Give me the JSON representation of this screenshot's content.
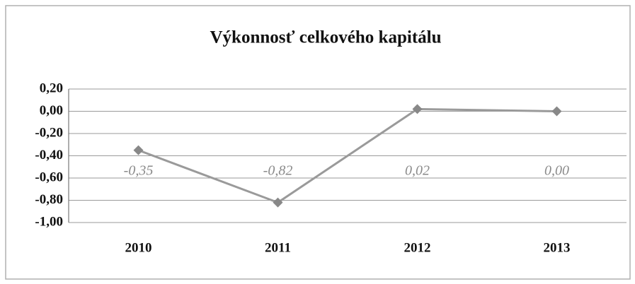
{
  "chart_data": {
    "type": "line",
    "title": "Výkonnosť celkového kapitálu",
    "categories": [
      "2010",
      "2011",
      "2012",
      "2013"
    ],
    "values": [
      -0.35,
      -0.82,
      0.02,
      0.0
    ],
    "value_labels": [
      "-0,35",
      "-0,82",
      "0,02",
      "0,00"
    ],
    "color": "#9a9a9a",
    "ylim": [
      -1.0,
      0.2
    ],
    "yticks": [
      {
        "value": -1.0,
        "label": "-1,00"
      },
      {
        "value": -0.8,
        "label": "-0,80"
      },
      {
        "value": -0.6,
        "label": "-0,60"
      },
      {
        "value": -0.4,
        "label": "-0,40"
      },
      {
        "value": -0.2,
        "label": "-0,20"
      },
      {
        "value": 0.0,
        "label": "0,00"
      },
      {
        "value": 0.2,
        "label": "0,20"
      }
    ],
    "grid": true
  }
}
